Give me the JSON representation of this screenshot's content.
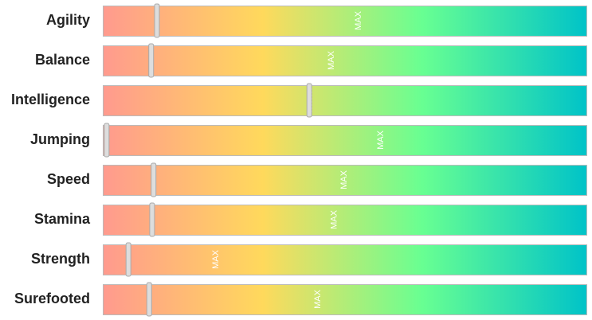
{
  "stats": [
    {
      "label": "Agility",
      "value": 11.2,
      "max": 52.9,
      "max_label": "MAX"
    },
    {
      "label": "Balance",
      "value": 10.0,
      "max": 47.3,
      "max_label": "MAX"
    },
    {
      "label": "Intelligence",
      "value": 42.7,
      "max": 43.2
    },
    {
      "label": "Jumping",
      "value": 0.8,
      "max": 57.5,
      "max_label": "MAX"
    },
    {
      "label": "Speed",
      "value": 10.5,
      "max": 49.9,
      "max_label": "MAX"
    },
    {
      "label": "Stamina",
      "value": 10.2,
      "max": 47.9,
      "max_label": "MAX"
    },
    {
      "label": "Strength",
      "value": 5.3,
      "max": 23.4,
      "max_label": "MAX"
    },
    {
      "label": "Surefooted",
      "value": 9.6,
      "max": 44.5,
      "max_label": "MAX"
    }
  ]
}
